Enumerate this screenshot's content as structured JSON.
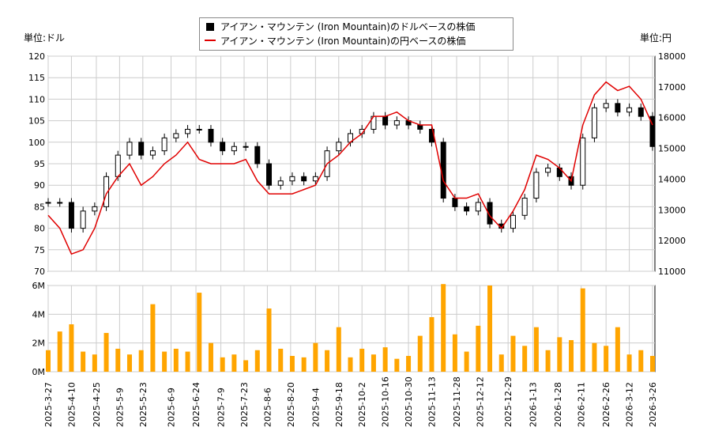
{
  "chart_data": {
    "type": "candlestick+line+bar",
    "legend": {
      "usd": "アイアン・マウンテン (Iron Mountain)のドルベースの株価",
      "jpy": "アイアン・マウンテン (Iron Mountain)の円ベースの株価"
    },
    "left_unit": "単位:ドル",
    "right_unit": "単位:円",
    "left_ylim": [
      70,
      120
    ],
    "left_ticks": [
      "70",
      "75",
      "80",
      "85",
      "90",
      "95",
      "100",
      "105",
      "110",
      "115",
      "120"
    ],
    "right_ylim": [
      11000,
      18000
    ],
    "right_ticks": [
      "11000",
      "12000",
      "13000",
      "14000",
      "15000",
      "16000",
      "17000",
      "18000"
    ],
    "volume_ylim": [
      0,
      6
    ],
    "volume_ticks": [
      "0M",
      "2M",
      "4M",
      "6M"
    ],
    "x_ticks": [
      "2025-3-27",
      "2025-4-10",
      "2025-4-25",
      "2025-5-9",
      "2025-5-23",
      "2025-6-9",
      "2025-6-24",
      "2025-7-9",
      "2025-7-23",
      "2025-8-6",
      "2025-8-20",
      "2025-9-4",
      "2025-9-18",
      "2025-10-2",
      "2025-10-16",
      "2025-10-30",
      "2025-11-13",
      "2025-11-28",
      "2025-12-12",
      "2025-12-29",
      "2026-1-13",
      "2026-1-28",
      "2026-2-11",
      "2026-2-26",
      "2026-3-12",
      "2026-3-26"
    ],
    "grid": true,
    "legend_position": "top-center",
    "colors": {
      "candle": "#000000",
      "jpy_line": "#e00000",
      "volume": "#ffa500",
      "grid": "#cccccc"
    },
    "dates": [
      "2025-03-27",
      "2025-04-03",
      "2025-04-10",
      "2025-04-17",
      "2025-04-24",
      "2025-05-01",
      "2025-05-08",
      "2025-05-15",
      "2025-05-22",
      "2025-05-29",
      "2025-06-05",
      "2025-06-12",
      "2025-06-19",
      "2025-06-26",
      "2025-07-03",
      "2025-07-10",
      "2025-07-17",
      "2025-07-24",
      "2025-07-31",
      "2025-08-07",
      "2025-08-14",
      "2025-08-21",
      "2025-08-28",
      "2025-09-04",
      "2025-09-11",
      "2025-09-18",
      "2025-09-25",
      "2025-10-02",
      "2025-10-09",
      "2025-10-16",
      "2025-10-23",
      "2025-10-30",
      "2025-11-06",
      "2025-11-13",
      "2025-11-20",
      "2025-11-27",
      "2025-12-04",
      "2025-12-11",
      "2025-12-18",
      "2025-12-25",
      "2026-01-01",
      "2026-01-08",
      "2026-01-15",
      "2026-01-22",
      "2026-01-29",
      "2026-02-05",
      "2026-02-12",
      "2026-02-19",
      "2026-02-26",
      "2026-03-05",
      "2026-03-12",
      "2026-03-19",
      "2026-03-26"
    ],
    "usd_close": [
      86,
      86,
      80,
      84,
      85,
      92,
      97,
      100,
      97,
      98,
      101,
      102,
      103,
      103,
      100,
      98,
      99,
      99,
      95,
      90,
      91,
      92,
      91,
      92,
      98,
      100,
      102,
      103,
      106,
      104,
      105,
      104,
      103,
      100,
      87,
      85,
      84,
      86,
      81,
      80,
      83,
      87,
      93,
      94,
      92,
      90,
      101,
      108,
      109,
      107,
      108,
      106,
      99
    ],
    "jpy_close": [
      12820,
      12400,
      11560,
      11700,
      12400,
      13520,
      14080,
      14500,
      13800,
      14080,
      14500,
      14780,
      15200,
      14640,
      14500,
      14500,
      14500,
      14640,
      13940,
      13520,
      13520,
      13520,
      13660,
      13800,
      14500,
      14780,
      15200,
      15480,
      16040,
      16040,
      16180,
      15900,
      15760,
      15760,
      13940,
      13380,
      13380,
      13520,
      12800,
      12400,
      12960,
      13660,
      14780,
      14640,
      14360,
      13940,
      15760,
      16740,
      17160,
      16880,
      17020,
      16600,
      15760
    ],
    "volume_m": [
      1.5,
      2.8,
      3.3,
      1.4,
      1.2,
      2.7,
      1.6,
      1.2,
      1.5,
      4.7,
      1.4,
      1.6,
      1.4,
      5.5,
      2.0,
      1.0,
      1.2,
      0.8,
      1.5,
      4.4,
      1.6,
      1.1,
      1.0,
      2.0,
      1.5,
      3.1,
      1.0,
      1.6,
      1.2,
      1.7,
      0.9,
      1.1,
      2.5,
      3.8,
      6.1,
      2.6,
      1.4,
      3.2,
      6.0,
      1.2,
      2.5,
      1.8,
      3.1,
      1.5,
      2.4,
      2.2,
      5.8,
      2.0,
      1.8,
      3.1,
      1.2,
      1.5,
      1.1
    ]
  }
}
